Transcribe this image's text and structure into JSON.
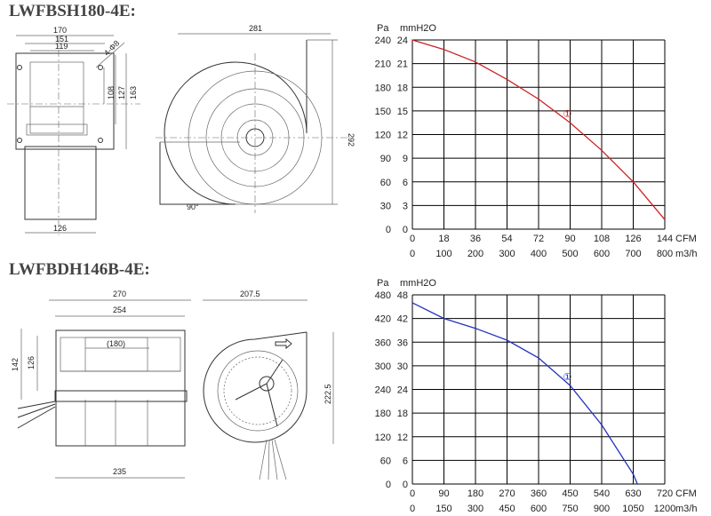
{
  "models": [
    {
      "name": "LWFBSH180-4E:",
      "dimensions": [
        "170",
        "151",
        "119",
        "4-Φ8",
        "108",
        "127",
        "163",
        "126",
        "281",
        "292",
        "90°"
      ],
      "chart": {
        "pressure_unit": "Pa",
        "pressure_unit2": "mmH2O",
        "flow_unit": "CFM",
        "flow_unit2": "m3/h",
        "pa_ticks": [
          "0",
          "30",
          "60",
          "90",
          "120",
          "150",
          "180",
          "210",
          "240"
        ],
        "mm_ticks": [
          "0",
          "3",
          "6",
          "9",
          "12",
          "15",
          "18",
          "21",
          "24"
        ],
        "cfm_ticks": [
          "0",
          "18",
          "36",
          "54",
          "72",
          "90",
          "108",
          "126",
          "144"
        ],
        "m3h_ticks": [
          "0",
          "100",
          "200",
          "300",
          "400",
          "500",
          "600",
          "700",
          "800"
        ],
        "curve_label": "①",
        "curve_color": "#cc2222"
      }
    },
    {
      "name": "LWFBDH146B-4E:",
      "dimensions": [
        "270",
        "254",
        "(180)",
        "142",
        "126",
        "235",
        "207.5",
        "222.5"
      ],
      "chart": {
        "pressure_unit": "Pa",
        "pressure_unit2": "mmH2O",
        "flow_unit": "CFM",
        "flow_unit2": "m3/h",
        "pa_ticks": [
          "0",
          "60",
          "120",
          "180",
          "240",
          "300",
          "360",
          "420",
          "480"
        ],
        "mm_ticks": [
          "0",
          "6",
          "12",
          "18",
          "24",
          "30",
          "36",
          "42",
          "48"
        ],
        "cfm_ticks": [
          "0",
          "90",
          "180",
          "270",
          "360",
          "450",
          "540",
          "630",
          "720"
        ],
        "m3h_ticks": [
          "0",
          "150",
          "300",
          "450",
          "600",
          "750",
          "900",
          "1050",
          "1200"
        ],
        "curve_label": "①",
        "curve_color": "#2233bb"
      }
    }
  ],
  "chart_data": [
    {
      "type": "line",
      "x": [
        0,
        100,
        200,
        300,
        400,
        500,
        600,
        700,
        800
      ],
      "series": [
        {
          "values": [
            240,
            228,
            212,
            190,
            165,
            135,
            100,
            60,
            12
          ]
        }
      ],
      "xlabel": "m3/h",
      "ylabel": "Pa",
      "xlim": [
        0,
        800
      ],
      "ylim": [
        0,
        240
      ],
      "grid": true
    },
    {
      "type": "line",
      "x": [
        0,
        150,
        300,
        450,
        600,
        750,
        900,
        1050,
        1070
      ],
      "series": [
        {
          "values": [
            460,
            420,
            395,
            365,
            320,
            250,
            150,
            25,
            0
          ]
        }
      ],
      "xlabel": "m3/h",
      "ylabel": "Pa",
      "xlim": [
        0,
        1200
      ],
      "ylim": [
        0,
        480
      ],
      "grid": true
    }
  ]
}
